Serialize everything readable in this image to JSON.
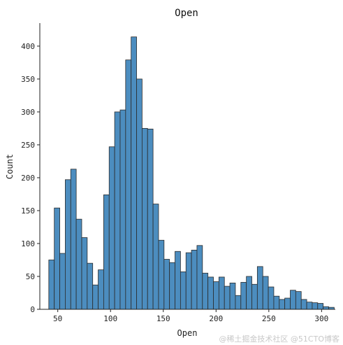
{
  "chart_data": {
    "type": "bar",
    "title": "Open",
    "xlabel": "Open",
    "ylabel": "Count",
    "xlim": [
      33,
      313
    ],
    "ylim": [
      0,
      435
    ],
    "xticks": [
      50,
      100,
      150,
      200,
      250,
      300
    ],
    "yticks": [
      0,
      50,
      100,
      150,
      200,
      250,
      300,
      350,
      400
    ],
    "bin_start": 41.5,
    "bin_width": 5.2,
    "bar_color": "#4c8dbf",
    "edge_color": "#2b2b2b",
    "grid": false,
    "values": [
      75,
      154,
      85,
      197,
      213,
      137,
      109,
      70,
      37,
      60,
      174,
      247,
      300,
      303,
      379,
      414,
      350,
      275,
      274,
      160,
      105,
      76,
      71,
      88,
      57,
      86,
      90,
      97,
      55,
      49,
      42,
      49,
      35,
      40,
      21,
      41,
      50,
      38,
      65,
      50,
      34,
      20,
      15,
      17,
      29,
      27,
      15,
      11,
      10,
      9,
      4,
      3
    ]
  },
  "watermark": "@稀土掘金技术社区 @51CTO博客"
}
